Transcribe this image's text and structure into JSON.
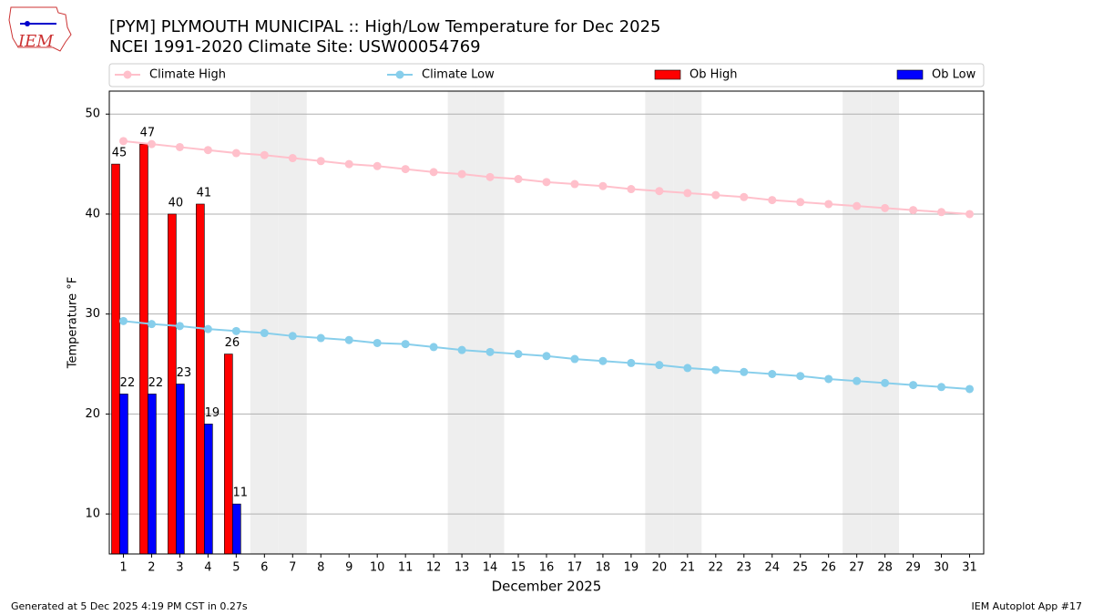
{
  "logo_text": "IEM",
  "footer_left": "Generated at 5 Dec 2025 4:19 PM CST in 0.27s",
  "footer_right": "IEM Autoplot App #17",
  "chart_data": {
    "type": "bar",
    "title": "[PYM] PLYMOUTH MUNICIPAL :: High/Low Temperature for Dec 2025",
    "subtitle": "NCEI 1991-2020 Climate Site: USW00054769",
    "x_label": "December 2025",
    "y_label": "Temperature °F",
    "x": [
      1,
      2,
      3,
      4,
      5,
      6,
      7,
      8,
      9,
      10,
      11,
      12,
      13,
      14,
      15,
      16,
      17,
      18,
      19,
      20,
      21,
      22,
      23,
      24,
      25,
      26,
      27,
      28,
      29,
      30,
      31
    ],
    "xlim": [
      0.5,
      31.5
    ],
    "xticks": [
      1,
      2,
      3,
      4,
      5,
      6,
      7,
      8,
      9,
      10,
      11,
      12,
      13,
      14,
      15,
      16,
      17,
      18,
      19,
      20,
      21,
      22,
      23,
      24,
      25,
      26,
      27,
      28,
      29,
      30,
      31
    ],
    "ylim": [
      6,
      52.3
    ],
    "yticks": [
      10,
      20,
      30,
      40,
      50
    ],
    "grid": true,
    "weekend_days": [
      6,
      7,
      13,
      14,
      20,
      21,
      27,
      28
    ],
    "series": [
      {
        "name": "Climate High",
        "type": "line",
        "color": "#ffc0cb",
        "values": [
          47.3,
          47.0,
          46.7,
          46.4,
          46.1,
          45.9,
          45.6,
          45.3,
          45.0,
          44.8,
          44.5,
          44.2,
          44.0,
          43.7,
          43.5,
          43.2,
          43.0,
          42.8,
          42.5,
          42.3,
          42.1,
          41.9,
          41.7,
          41.4,
          41.2,
          41.0,
          40.8,
          40.6,
          40.4,
          40.2,
          40.0
        ]
      },
      {
        "name": "Climate Low",
        "type": "line",
        "color": "#87ceeb",
        "values": [
          29.3,
          29.0,
          28.8,
          28.5,
          28.3,
          28.1,
          27.8,
          27.6,
          27.4,
          27.1,
          27.0,
          26.7,
          26.4,
          26.2,
          26.0,
          25.8,
          25.5,
          25.3,
          25.1,
          24.9,
          24.6,
          24.4,
          24.2,
          24.0,
          23.8,
          23.5,
          23.3,
          23.1,
          22.9,
          22.7,
          22.5
        ]
      },
      {
        "name": "Ob High",
        "type": "bar",
        "color": "#ff0000",
        "values": [
          45,
          47,
          40,
          41,
          26,
          null,
          null,
          null,
          null,
          null,
          null,
          null,
          null,
          null,
          null,
          null,
          null,
          null,
          null,
          null,
          null,
          null,
          null,
          null,
          null,
          null,
          null,
          null,
          null,
          null,
          null
        ]
      },
      {
        "name": "Ob Low",
        "type": "bar",
        "color": "#0000ff",
        "values": [
          22,
          22,
          23,
          19,
          11,
          null,
          null,
          null,
          null,
          null,
          null,
          null,
          null,
          null,
          null,
          null,
          null,
          null,
          null,
          null,
          null,
          null,
          null,
          null,
          null,
          null,
          null,
          null,
          null,
          null,
          null
        ]
      }
    ]
  }
}
